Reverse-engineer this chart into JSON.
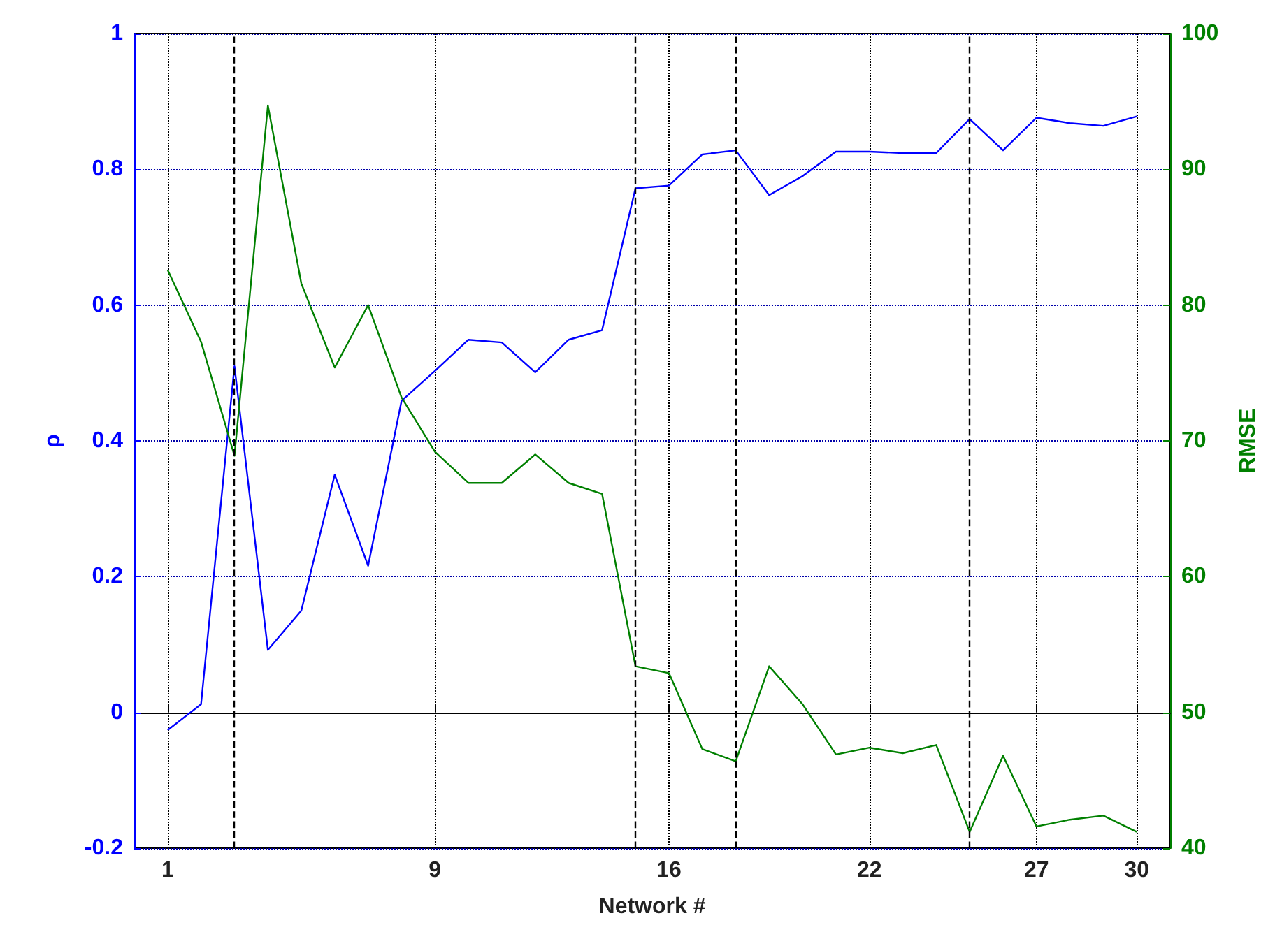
{
  "chart_data": {
    "type": "line",
    "xlabel": "Network #",
    "ylabel": "ρ",
    "y2label": "RMSE",
    "x": [
      1,
      2,
      3,
      4,
      5,
      6,
      7,
      8,
      9,
      10,
      11,
      12,
      13,
      14,
      15,
      16,
      17,
      18,
      19,
      20,
      21,
      22,
      23,
      24,
      25,
      26,
      27,
      28,
      29,
      30
    ],
    "series": [
      {
        "color": "#0000ff",
        "values": [
          -0.026,
          0.012,
          0.51,
          0.092,
          0.15,
          0.35,
          0.216,
          0.459,
          0.503,
          0.549,
          0.545,
          0.501,
          0.549,
          0.563,
          0.772,
          0.776,
          0.822,
          0.828,
          0.762,
          0.79,
          0.826,
          0.826,
          0.824,
          0.824,
          0.874,
          0.828,
          0.876,
          0.868,
          0.864,
          0.878
        ]
      },
      {
        "color": "#008000",
        "axis": "y2",
        "values": [
          82.6,
          77.3,
          68.9,
          94.7,
          81.6,
          75.4,
          80.0,
          73.2,
          69.2,
          66.9,
          66.9,
          69.0,
          66.9,
          66.1,
          53.4,
          52.9,
          47.3,
          46.4,
          53.4,
          50.6,
          46.9,
          47.4,
          47.0,
          47.6,
          41.2,
          46.8,
          41.6,
          42.1,
          42.4,
          41.2
        ]
      }
    ],
    "xlim": [
      0,
      31
    ],
    "xticks": [
      1,
      9,
      16,
      22,
      27,
      30
    ],
    "ylim": [
      -0.2,
      1
    ],
    "yticks": [
      -0.2,
      0,
      0.2,
      0.4,
      0.6,
      0.8,
      1
    ],
    "y2lim": [
      40,
      100
    ],
    "y2ticks": [
      40,
      50,
      60,
      70,
      80,
      90,
      100
    ],
    "ref_lines": [
      {
        "axis": "x",
        "value": 3,
        "color": "#000000",
        "line_style": "dashed"
      },
      {
        "axis": "x",
        "value": 15,
        "color": "#000000",
        "line_style": "dashed"
      },
      {
        "axis": "x",
        "value": 18,
        "color": "#000000",
        "line_style": "dashed"
      },
      {
        "axis": "x",
        "value": 25,
        "color": "#000000",
        "line_style": "dashed"
      }
    ],
    "grid": true,
    "line_style": "solid",
    "marker": "none"
  }
}
